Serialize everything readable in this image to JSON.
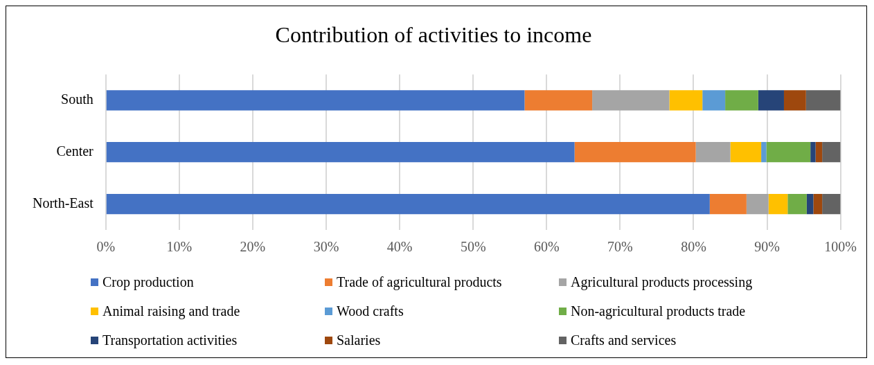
{
  "chart_data": {
    "type": "bar",
    "title": "Contribution of activities to income",
    "orientation": "horizontal",
    "stacked": true,
    "categories": [
      "South",
      "Center",
      "North-East"
    ],
    "series": [
      {
        "name": "Crop production",
        "color": "#4472c4",
        "values": [
          57.0,
          63.8,
          82.2
        ]
      },
      {
        "name": "Trade of agricultural products",
        "color": "#ed7d31",
        "values": [
          9.2,
          16.5,
          5.0
        ]
      },
      {
        "name": "Agricultural products processing",
        "color": "#a5a5a5",
        "values": [
          10.5,
          4.7,
          3.0
        ]
      },
      {
        "name": "Animal raising and trade",
        "color": "#ffc000",
        "values": [
          4.5,
          4.2,
          2.6
        ]
      },
      {
        "name": "Wood crafts",
        "color": "#5b9bd5",
        "values": [
          3.1,
          0.7,
          0
        ]
      },
      {
        "name": "Non-agricultural products trade",
        "color": "#70ad47",
        "values": [
          4.5,
          6.0,
          2.6
        ]
      },
      {
        "name": "Transportation activities",
        "color": "#264478",
        "values": [
          3.5,
          0.7,
          0.9
        ]
      },
      {
        "name": "Salaries",
        "color": "#9e480e",
        "values": [
          3.0,
          0.9,
          1.2
        ]
      },
      {
        "name": "Crafts and services",
        "color": "#636363",
        "values": [
          4.7,
          2.5,
          2.5
        ]
      }
    ],
    "xlim": [
      0,
      100
    ],
    "xticks": [
      {
        "value": 0,
        "label": "0%"
      },
      {
        "value": 10,
        "label": "10%"
      },
      {
        "value": 20,
        "label": "20%"
      },
      {
        "value": 30,
        "label": "30%"
      },
      {
        "value": 40,
        "label": "40%"
      },
      {
        "value": 50,
        "label": "50%"
      },
      {
        "value": 60,
        "label": "60%"
      },
      {
        "value": 70,
        "label": "70%"
      },
      {
        "value": 80,
        "label": "80%"
      },
      {
        "value": 90,
        "label": "90%"
      },
      {
        "value": 100,
        "label": "100%"
      }
    ],
    "grid": "x",
    "legend": "bottom"
  }
}
